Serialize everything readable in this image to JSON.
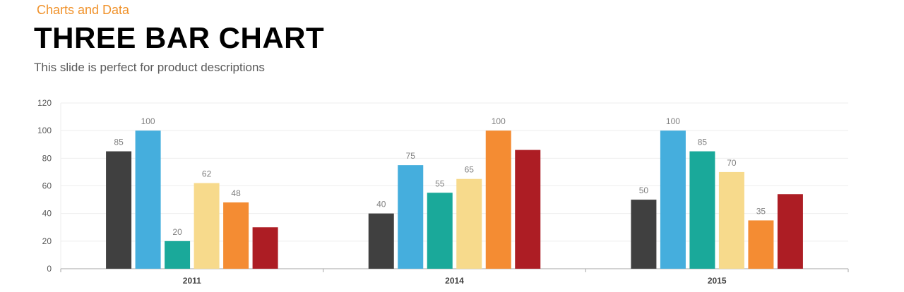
{
  "header": {
    "kicker": "Charts and Data",
    "title": "THREE BAR CHART",
    "subtitle": "This slide is perfect for product descriptions"
  },
  "colors": {
    "kicker": "#F0922B",
    "series": [
      "#404040",
      "#45AEDD",
      "#1AA99A",
      "#F7DA8C",
      "#F48C33",
      "#AD1D24"
    ],
    "grid": "#EDEDED",
    "axis": "#A6A6A6",
    "tick_label": "#595959",
    "value_label": "#7F7F7F",
    "category_label": "#404040"
  },
  "chart_data": {
    "type": "bar",
    "categories": [
      "2011",
      "2014",
      "2015"
    ],
    "series": [
      {
        "values": [
          85,
          40,
          50
        ],
        "labels": [
          "85",
          "40",
          "50"
        ]
      },
      {
        "values": [
          100,
          75,
          100
        ],
        "labels": [
          "100",
          "75",
          "100"
        ]
      },
      {
        "values": [
          20,
          55,
          85
        ],
        "labels": [
          "20",
          "55",
          "85"
        ]
      },
      {
        "values": [
          62,
          65,
          70
        ],
        "labels": [
          "62",
          "65",
          "70"
        ]
      },
      {
        "values": [
          48,
          100,
          35
        ],
        "labels": [
          "48",
          "100",
          "35"
        ]
      },
      {
        "values": [
          30,
          86,
          54
        ],
        "labels": [
          "",
          "",
          ""
        ]
      }
    ],
    "yticks": [
      "0",
      "20",
      "40",
      "60",
      "80",
      "100",
      "120"
    ],
    "ylim": [
      0,
      120
    ],
    "grid": true,
    "legend": "none"
  }
}
